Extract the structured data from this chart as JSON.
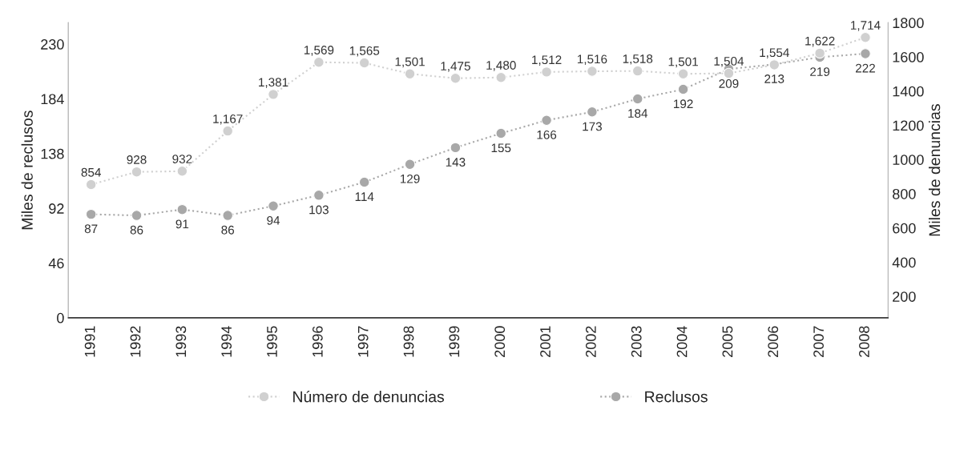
{
  "chart_data": {
    "type": "line",
    "categories": [
      "1991",
      "1992",
      "1993",
      "1994",
      "1995",
      "1996",
      "1997",
      "1998",
      "1999",
      "2000",
      "2001",
      "2002",
      "2003",
      "2004",
      "2005",
      "2006",
      "2007",
      "2008"
    ],
    "series": [
      {
        "name": "Número de denuncias",
        "color": "#d0d0d0",
        "axis": "y2",
        "values": [
          854,
          928,
          932,
          1167,
          1381,
          1569,
          1565,
          1501,
          1475,
          1480,
          1512,
          1516,
          1518,
          1501,
          1504,
          1554,
          1622,
          1714
        ],
        "value_labels": [
          "854",
          "928",
          "932",
          "1,167",
          "1,381",
          "1,569",
          "1,565",
          "1,501",
          "1,475",
          "1,480",
          "1,512",
          "1,516",
          "1,518",
          "1,501",
          "1,504",
          "1,554",
          "1,622",
          "1,714"
        ]
      },
      {
        "name": "Reclusos",
        "color": "#a8a8a8",
        "values": [
          87,
          86,
          91,
          86,
          94,
          103,
          114,
          129,
          143,
          155,
          166,
          173,
          184,
          192,
          209,
          213,
          219,
          222
        ],
        "value_labels": [
          "87",
          "86",
          "91",
          "86",
          "94",
          "103",
          "114",
          "129",
          "143",
          "155",
          "166",
          "173",
          "184",
          "192",
          "209",
          "213",
          "219",
          "222"
        ]
      }
    ],
    "ylabel": "Miles de reclusos",
    "y2label": "Miles de denuncias",
    "ylim": [
      0,
      248
    ],
    "yticks": [
      0,
      46,
      92,
      138,
      184,
      230
    ],
    "y2lim": [
      75,
      1800
    ],
    "y2ticks": [
      200,
      400,
      600,
      800,
      1000,
      1200,
      1400,
      1600,
      1800
    ],
    "legend": "bottom",
    "marker": "circle",
    "line_style": "dotted",
    "grid": false
  }
}
